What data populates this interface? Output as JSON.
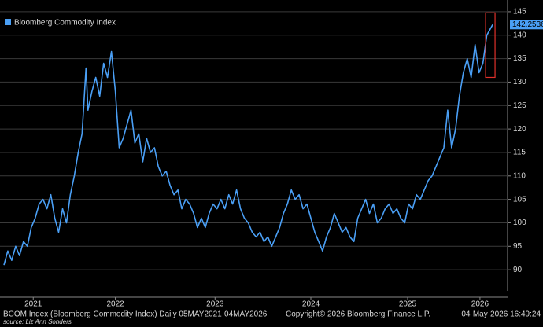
{
  "chart_data": {
    "type": "line",
    "legend": "Bloomberg Commodity Index",
    "footer_left": "BCOM Index (Bloomberg Commodity Index) Daily 05MAY2021-04MAY2026",
    "footer_center": "Copyright© 2026 Bloomberg Finance L.P.",
    "footer_right": "04-May-2026 16:49:24",
    "source": "source: Liz Ann Sonders",
    "color": "#4a9ff5",
    "grid": true,
    "xlim": [
      2021.3,
      2026.42
    ],
    "xticks": [
      {
        "value": 2021.64,
        "label": "2021"
      },
      {
        "value": 2022.48,
        "label": "2022"
      },
      {
        "value": 2023.5,
        "label": "2023"
      },
      {
        "value": 2024.48,
        "label": "2024"
      },
      {
        "value": 2025.47,
        "label": "2025"
      },
      {
        "value": 2026.21,
        "label": "2026"
      }
    ],
    "ylim": [
      85.5,
      147.5
    ],
    "yticks": [
      90,
      95,
      100,
      105,
      110,
      115,
      120,
      125,
      130,
      135,
      140,
      145
    ],
    "x": [
      2021.34,
      2021.38,
      2021.42,
      2021.46,
      2021.5,
      2021.54,
      2021.58,
      2021.62,
      2021.66,
      2021.7,
      2021.74,
      2021.78,
      2021.82,
      2021.86,
      2021.9,
      2021.94,
      2021.98,
      2022.02,
      2022.06,
      2022.1,
      2022.14,
      2022.18,
      2022.2,
      2022.24,
      2022.28,
      2022.32,
      2022.36,
      2022.4,
      2022.44,
      2022.48,
      2022.52,
      2022.56,
      2022.6,
      2022.64,
      2022.68,
      2022.72,
      2022.76,
      2022.8,
      2022.84,
      2022.88,
      2022.92,
      2022.96,
      2023.0,
      2023.04,
      2023.08,
      2023.12,
      2023.16,
      2023.2,
      2023.24,
      2023.28,
      2023.32,
      2023.36,
      2023.4,
      2023.44,
      2023.48,
      2023.52,
      2023.56,
      2023.6,
      2023.64,
      2023.68,
      2023.72,
      2023.76,
      2023.8,
      2023.84,
      2023.88,
      2023.92,
      2023.96,
      2024.0,
      2024.04,
      2024.08,
      2024.12,
      2024.16,
      2024.2,
      2024.24,
      2024.28,
      2024.32,
      2024.36,
      2024.4,
      2024.44,
      2024.48,
      2024.52,
      2024.56,
      2024.6,
      2024.64,
      2024.68,
      2024.72,
      2024.76,
      2024.8,
      2024.84,
      2024.88,
      2024.92,
      2024.96,
      2025.0,
      2025.04,
      2025.08,
      2025.12,
      2025.16,
      2025.2,
      2025.24,
      2025.28,
      2025.32,
      2025.36,
      2025.4,
      2025.44,
      2025.48,
      2025.52,
      2025.56,
      2025.6,
      2025.64,
      2025.68,
      2025.72,
      2025.76,
      2025.8,
      2025.84,
      2025.88,
      2025.92,
      2025.96,
      2026.0,
      2026.04,
      2026.08,
      2026.12,
      2026.16,
      2026.2,
      2026.24,
      2026.28,
      2026.34
    ],
    "series": [
      {
        "name": "Bloomberg Commodity Index",
        "color": "#4a9ff5",
        "values": [
          91,
          94,
          92,
          95,
          93,
          96,
          95,
          99,
          101,
          104,
          105,
          103,
          106,
          101,
          98,
          103,
          100,
          106,
          110,
          115,
          119,
          133,
          124,
          128,
          131,
          127,
          134,
          131,
          136.5,
          128,
          116,
          118,
          121,
          124,
          117,
          119,
          113,
          118,
          115,
          116,
          112,
          110,
          111,
          108,
          106,
          107,
          103,
          105,
          104,
          102,
          99,
          101,
          99,
          102,
          104,
          103,
          105,
          103,
          106,
          104,
          107,
          103,
          101,
          100,
          98,
          97,
          98,
          96,
          97,
          95,
          97,
          99,
          102,
          104,
          107,
          105,
          106,
          103,
          104,
          101,
          98,
          96,
          94,
          97,
          99,
          102,
          100,
          98,
          99,
          97,
          96,
          101,
          103,
          105,
          102,
          104,
          100,
          101,
          103,
          104,
          102,
          103,
          101,
          100,
          104,
          103,
          106,
          105,
          107,
          109,
          110,
          112,
          114,
          116,
          124,
          116,
          120,
          127,
          132,
          135,
          131,
          138,
          132,
          134,
          140,
          142.2536
        ]
      }
    ]
  }
}
